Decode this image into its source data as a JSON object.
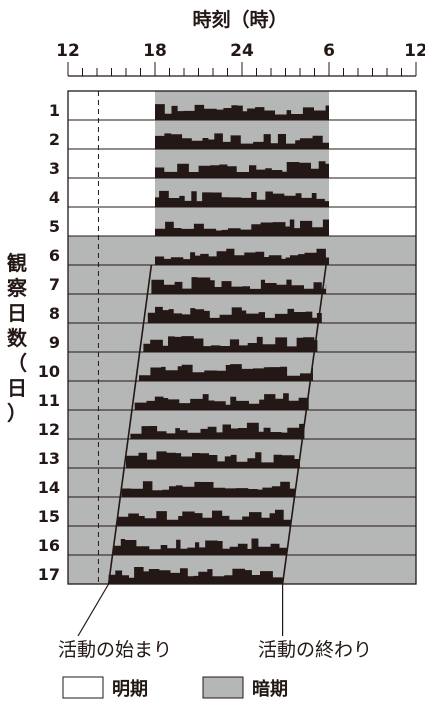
{
  "chart_data": {
    "type": "actogram",
    "title": "",
    "xlabel": "時刻（時）",
    "ylabel": "観察日数（日）",
    "x_ticks": [
      "12",
      "18",
      "24",
      "6",
      "12"
    ],
    "x_range_hours": [
      12,
      36
    ],
    "days": [
      "1",
      "2",
      "3",
      "4",
      "5",
      "6",
      "7",
      "8",
      "9",
      "10",
      "11",
      "12",
      "13",
      "14",
      "15",
      "16",
      "17"
    ],
    "light_dark": {
      "days_1_to_5": {
        "dark_start": "18",
        "dark_end": "6"
      },
      "days_6_to_17": "暗期"
    },
    "activity_start_hour": [
      18.0,
      18.0,
      18.0,
      18.0,
      18.0,
      18.0,
      17.75,
      17.5,
      17.2,
      16.9,
      16.6,
      16.3,
      16.0,
      15.7,
      15.4,
      15.1,
      14.8
    ],
    "activity_end_hour": [
      30.0,
      30.0,
      30.0,
      30.0,
      30.0,
      30.0,
      29.8,
      29.5,
      29.2,
      28.9,
      28.6,
      28.3,
      28.0,
      27.7,
      27.4,
      27.1,
      26.8
    ],
    "reference_line_hour": 14.1,
    "annotations": {
      "activity_start": "活動の始まり",
      "activity_end": "活動の終わり"
    },
    "legend": {
      "light": "明期",
      "dark": "暗期"
    },
    "colors": {
      "dark_period": "#b5b6b6",
      "activity": "#231815",
      "light_period": "#ffffff"
    }
  }
}
